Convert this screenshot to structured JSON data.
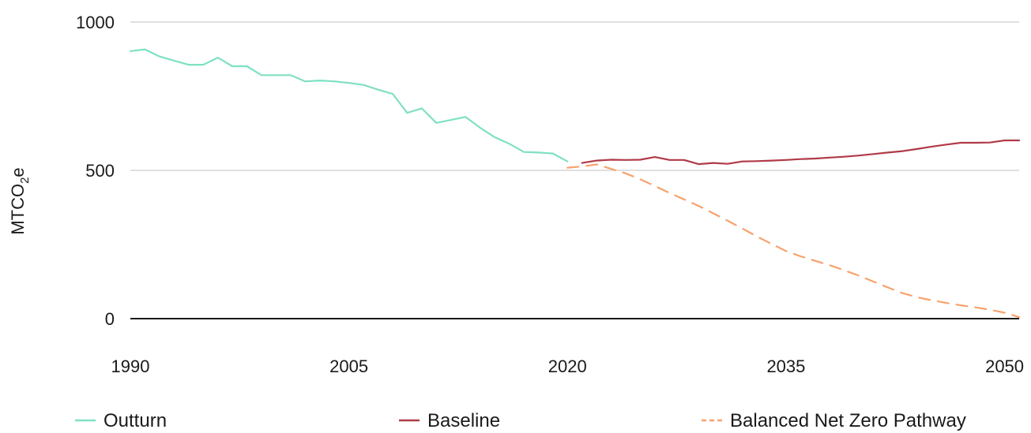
{
  "chart_data": {
    "type": "line",
    "ylabel_main": "MTCO",
    "ylabel_sub": "2",
    "ylabel_tail": "e",
    "xlim": [
      1990,
      2051
    ],
    "ylim": [
      0,
      1000
    ],
    "yticks": [
      0,
      500,
      1000
    ],
    "ytick_labels": [
      "0",
      "500",
      "1000"
    ],
    "xticks": [
      1990,
      2005,
      2020,
      2035,
      2050
    ],
    "xtick_labels": [
      "1990",
      "2005",
      "2020",
      "2035",
      "2050"
    ],
    "grid": true,
    "legend_position": "bottom",
    "series": [
      {
        "name": "Outturn",
        "color": "#7fe0c4",
        "style": "solid",
        "x": [
          1990,
          1991,
          1992,
          1993,
          1994,
          1995,
          1996,
          1997,
          1998,
          1999,
          2000,
          2001,
          2002,
          2003,
          2004,
          2005,
          2006,
          2007,
          2008,
          2009,
          2010,
          2011,
          2012,
          2013,
          2014,
          2015,
          2016,
          2017,
          2018,
          2019,
          2020
        ],
        "y": [
          902,
          908,
          884,
          870,
          856,
          856,
          880,
          851,
          851,
          821,
          821,
          821,
          800,
          803,
          800,
          795,
          788,
          772,
          758,
          694,
          709,
          660,
          670,
          680,
          644,
          612,
          590,
          562,
          560,
          557,
          530
        ]
      },
      {
        "name": "Baseline",
        "color": "#b03a48",
        "style": "solid",
        "x": [
          2021,
          2022,
          2023,
          2024,
          2025,
          2026,
          2027,
          2028,
          2029,
          2030,
          2031,
          2032,
          2033,
          2034,
          2035,
          2036,
          2037,
          2038,
          2039,
          2040,
          2041,
          2042,
          2043,
          2044,
          2045,
          2046,
          2047,
          2048,
          2049,
          2050,
          2051
        ],
        "y": [
          525,
          533,
          536,
          535,
          536,
          545,
          535,
          535,
          521,
          525,
          522,
          530,
          531,
          533,
          535,
          538,
          540,
          543,
          546,
          550,
          555,
          560,
          565,
          572,
          580,
          587,
          593,
          593,
          594,
          601,
          601
        ]
      },
      {
        "name": "Balanced Net Zero Pathway",
        "color": "#f7a26c",
        "style": "dashed",
        "x": [
          2020,
          2021,
          2022,
          2023,
          2024,
          2025,
          2026,
          2027,
          2028,
          2029,
          2030,
          2031,
          2032,
          2033,
          2034,
          2035,
          2036,
          2037,
          2038,
          2039,
          2040,
          2041,
          2042,
          2043,
          2044,
          2045,
          2046,
          2047,
          2048,
          2049,
          2050,
          2051
        ],
        "y": [
          509,
          513,
          520,
          505,
          490,
          470,
          447,
          424,
          402,
          380,
          355,
          330,
          304,
          277,
          252,
          228,
          210,
          195,
          180,
          163,
          145,
          125,
          105,
          86,
          72,
          62,
          53,
          45,
          38,
          30,
          20,
          5
        ]
      }
    ]
  }
}
